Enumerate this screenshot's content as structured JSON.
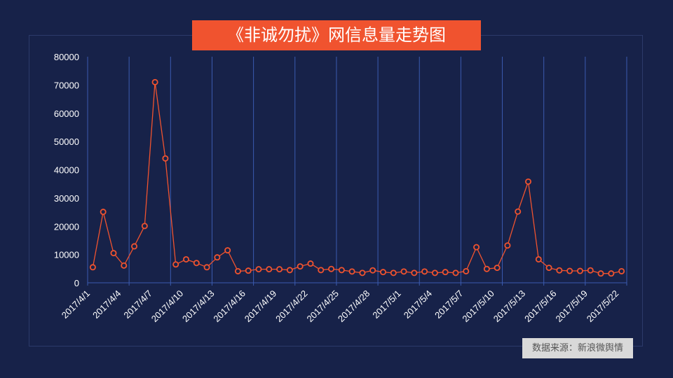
{
  "title": "《非诚勿扰》网信息量走势图",
  "source": "数据来源：新浪微舆情",
  "colors": {
    "background": "#172249",
    "title_bg": "#f0532f",
    "line": "#f0532f",
    "gridline": "#3b5bb0",
    "source_bg": "#d9d9d9"
  },
  "chart_data": {
    "type": "line",
    "title": "《非诚勿扰》网信息量走势图",
    "xlabel": "",
    "ylabel": "",
    "ylim": [
      0,
      80000
    ],
    "yticks": [
      0,
      10000,
      20000,
      30000,
      40000,
      50000,
      60000,
      70000,
      80000
    ],
    "x_tick_labels": [
      "2017/4/1",
      "2017/4/4",
      "2017/4/7",
      "2017/4/10",
      "2017/4/13",
      "2017/4/16",
      "2017/4/19",
      "2017/4/22",
      "2017/4/25",
      "2017/4/28",
      "2017/5/1",
      "2017/5/4",
      "2017/5/7",
      "2017/5/10",
      "2017/5/13",
      "2017/5/16",
      "2017/5/19",
      "2017/5/22"
    ],
    "grid": "vertical",
    "legend": "none",
    "categories": [
      "2017/4/1",
      "2017/4/2",
      "2017/4/3",
      "2017/4/4",
      "2017/4/5",
      "2017/4/6",
      "2017/4/7",
      "2017/4/8",
      "2017/4/9",
      "2017/4/10",
      "2017/4/11",
      "2017/4/12",
      "2017/4/13",
      "2017/4/14",
      "2017/4/15",
      "2017/4/16",
      "2017/4/17",
      "2017/4/18",
      "2017/4/19",
      "2017/4/20",
      "2017/4/21",
      "2017/4/22",
      "2017/4/23",
      "2017/4/24",
      "2017/4/25",
      "2017/4/26",
      "2017/4/27",
      "2017/4/28",
      "2017/4/29",
      "2017/4/30",
      "2017/5/1",
      "2017/5/2",
      "2017/5/3",
      "2017/5/4",
      "2017/5/5",
      "2017/5/6",
      "2017/5/7",
      "2017/5/8",
      "2017/5/9",
      "2017/5/10",
      "2017/5/11",
      "2017/5/12",
      "2017/5/13",
      "2017/5/14",
      "2017/5/15",
      "2017/5/16",
      "2017/5/17",
      "2017/5/18",
      "2017/5/19",
      "2017/5/20",
      "2017/5/21",
      "2017/5/22"
    ],
    "series": [
      {
        "name": "信息量",
        "values": [
          5500,
          25100,
          10500,
          6100,
          12900,
          20100,
          71000,
          44000,
          6500,
          8300,
          7000,
          5500,
          9000,
          11500,
          4100,
          4300,
          4800,
          4800,
          4800,
          4500,
          5800,
          6800,
          4500,
          4900,
          4500,
          4000,
          3500,
          4400,
          3800,
          3500,
          4000,
          3500,
          4000,
          3500,
          3800,
          3500,
          4100,
          12600,
          4900,
          5300,
          13200,
          25200,
          35800,
          8300,
          5300,
          4400,
          4200,
          4200,
          4400,
          3300,
          3300,
          4100
        ]
      }
    ]
  }
}
